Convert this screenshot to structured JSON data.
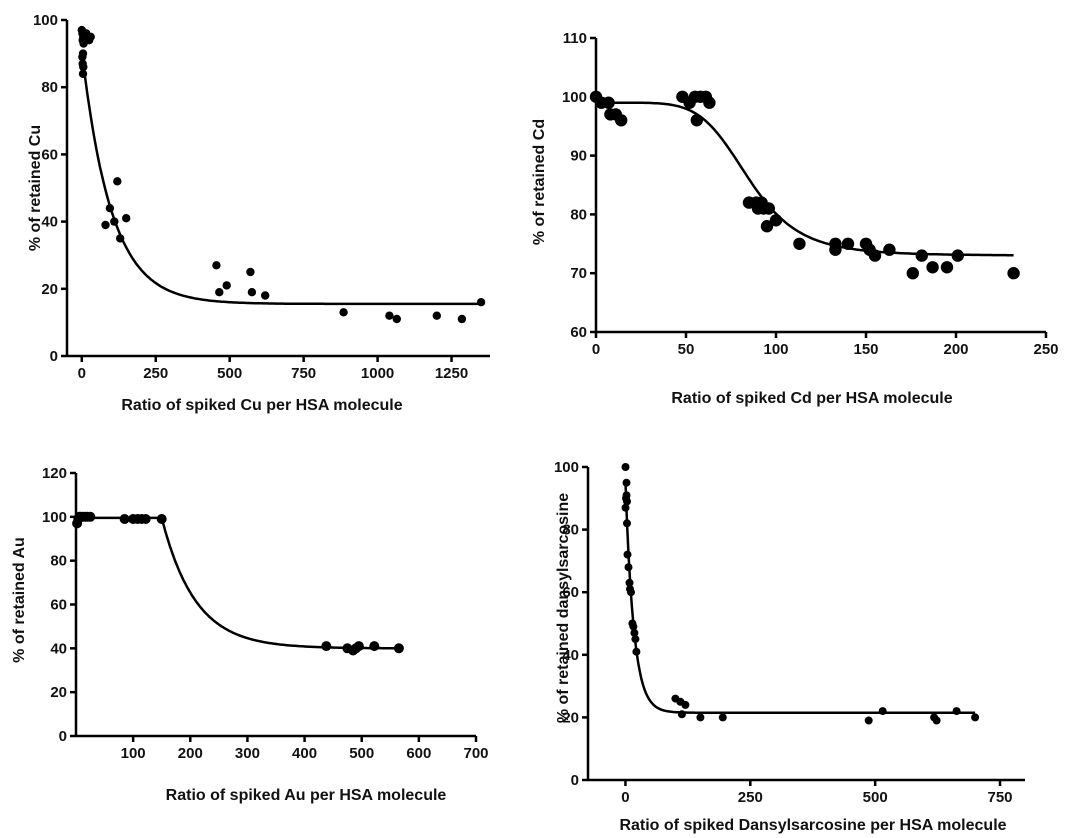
{
  "chart_data": [
    {
      "type": "scatter",
      "xlabel": "Ratio of spiked Cu per HSA molecule",
      "ylabel": "% of retained Cu",
      "xlim": [
        -50,
        1380
      ],
      "ylim": [
        0,
        100
      ],
      "xticks": [
        0,
        250,
        500,
        750,
        1000,
        1250
      ],
      "yticks": [
        0,
        20,
        40,
        60,
        80,
        100
      ],
      "ytick_labels": [
        "0",
        "20",
        "40",
        "60",
        "80",
        "100"
      ],
      "points": [
        [
          0,
          97
        ],
        [
          2,
          96
        ],
        [
          3,
          94
        ],
        [
          5,
          95
        ],
        [
          6,
          93
        ],
        [
          4,
          90
        ],
        [
          2,
          89
        ],
        [
          3,
          87
        ],
        [
          5,
          86
        ],
        [
          4,
          84
        ],
        [
          10,
          95
        ],
        [
          15,
          96
        ],
        [
          20,
          95
        ],
        [
          25,
          94
        ],
        [
          30,
          95
        ],
        [
          80,
          39
        ],
        [
          95,
          44
        ],
        [
          110,
          40
        ],
        [
          120,
          52
        ],
        [
          130,
          35
        ],
        [
          150,
          41
        ],
        [
          455,
          27
        ],
        [
          465,
          19
        ],
        [
          490,
          21
        ],
        [
          570,
          25
        ],
        [
          575,
          19
        ],
        [
          620,
          18
        ],
        [
          885,
          13
        ],
        [
          1040,
          12
        ],
        [
          1065,
          11
        ],
        [
          1200,
          12
        ],
        [
          1285,
          11
        ],
        [
          1350,
          16
        ]
      ],
      "fit": {
        "model": "one-phase decay",
        "y0": 91,
        "plateau": 15.5,
        "k": 0.01,
        "x_range": [
          0,
          1350
        ]
      }
    },
    {
      "type": "scatter",
      "xlabel": "Ratio of spiked Cd per HSA molecule",
      "ylabel": "% of retained Cd",
      "xlim": [
        0,
        250
      ],
      "ylim": [
        60,
        110
      ],
      "xticks": [
        0,
        50,
        100,
        150,
        200,
        250
      ],
      "yticks": [
        60,
        70,
        80,
        90,
        100,
        110
      ],
      "ytick_labels": [
        "60",
        "70",
        "80",
        "90",
        "100",
        "110"
      ],
      "points": [
        [
          0,
          100
        ],
        [
          3,
          99
        ],
        [
          7,
          99
        ],
        [
          8,
          97
        ],
        [
          11,
          97
        ],
        [
          14,
          96
        ],
        [
          48,
          100
        ],
        [
          52,
          99
        ],
        [
          55,
          100
        ],
        [
          56,
          96
        ],
        [
          58,
          100
        ],
        [
          61,
          100
        ],
        [
          63,
          99
        ],
        [
          85,
          82
        ],
        [
          89,
          82
        ],
        [
          90,
          81
        ],
        [
          92,
          82
        ],
        [
          93,
          81
        ],
        [
          95,
          78
        ],
        [
          96,
          81
        ],
        [
          100,
          79
        ],
        [
          113,
          75
        ],
        [
          133,
          74
        ],
        [
          133,
          75
        ],
        [
          140,
          75
        ],
        [
          150,
          75
        ],
        [
          152,
          74
        ],
        [
          155,
          73
        ],
        [
          163,
          74
        ],
        [
          176,
          70
        ],
        [
          181,
          73
        ],
        [
          187,
          71
        ],
        [
          195,
          71
        ],
        [
          201,
          73
        ],
        [
          232,
          70
        ]
      ],
      "fit": {
        "model": "sigmoid",
        "top": 99,
        "bottom": 73,
        "x50": 85,
        "slope": 6,
        "x_range": [
          0,
          232
        ]
      }
    },
    {
      "type": "scatter",
      "xlabel": "Ratio of spiked Au per HSA molecule",
      "ylabel": "% of retained Au",
      "xlim": [
        0,
        700
      ],
      "ylim": [
        0,
        120
      ],
      "xticks": [
        100,
        200,
        300,
        400,
        500,
        600,
        700
      ],
      "yticks": [
        0,
        20,
        40,
        60,
        80,
        100,
        120
      ],
      "ytick_labels": [
        "0",
        "20",
        "40",
        "60",
        "80",
        "100",
        "120"
      ],
      "points": [
        [
          2,
          97
        ],
        [
          4,
          99
        ],
        [
          6,
          100
        ],
        [
          8,
          100
        ],
        [
          12,
          100
        ],
        [
          16,
          100
        ],
        [
          20,
          100
        ],
        [
          25,
          100
        ],
        [
          85,
          99
        ],
        [
          100,
          99
        ],
        [
          108,
          99
        ],
        [
          115,
          99
        ],
        [
          122,
          99
        ],
        [
          150,
          99
        ],
        [
          438,
          41
        ],
        [
          475,
          40
        ],
        [
          485,
          39
        ],
        [
          490,
          40
        ],
        [
          495,
          41
        ],
        [
          522,
          41
        ],
        [
          565,
          40
        ]
      ],
      "fit": {
        "model": "plateau followed by one-phase decay",
        "plateau_start": 99.5,
        "x0": 150,
        "plateau_end": 40,
        "k": 0.017,
        "x_range": [
          0,
          565
        ]
      }
    },
    {
      "type": "scatter",
      "xlabel": "Ratio of spiked Dansylsarcosine per HSA molecule",
      "ylabel": "% of retained dansylsarcosine",
      "xlim": [
        -75,
        800
      ],
      "ylim": [
        0,
        100
      ],
      "xticks": [
        0,
        250,
        500,
        750
      ],
      "yticks": [
        0,
        20,
        40,
        60,
        80,
        100
      ],
      "ytick_labels": [
        "0",
        "20",
        "40",
        "60",
        "80",
        "100"
      ],
      "points": [
        [
          0,
          100
        ],
        [
          2,
          95
        ],
        [
          2,
          91
        ],
        [
          1,
          90
        ],
        [
          3,
          89
        ],
        [
          0,
          87
        ],
        [
          3,
          82
        ],
        [
          4,
          72
        ],
        [
          6,
          68
        ],
        [
          8,
          63
        ],
        [
          9,
          61
        ],
        [
          11,
          60
        ],
        [
          14,
          50
        ],
        [
          16,
          49
        ],
        [
          18,
          47
        ],
        [
          20,
          45
        ],
        [
          22,
          41
        ],
        [
          100,
          26
        ],
        [
          110,
          25
        ],
        [
          120,
          24
        ],
        [
          113,
          21
        ],
        [
          150,
          20
        ],
        [
          195,
          20
        ],
        [
          487,
          19
        ],
        [
          515,
          22
        ],
        [
          618,
          20
        ],
        [
          623,
          19
        ],
        [
          663,
          22
        ],
        [
          700,
          20
        ]
      ],
      "fit": {
        "model": "one-phase decay",
        "y0": 95,
        "plateau": 21.5,
        "k": 0.06,
        "x_range": [
          0,
          700
        ]
      }
    }
  ]
}
